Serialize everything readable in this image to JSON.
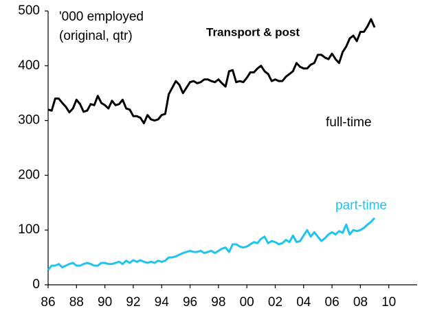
{
  "chart_data": {
    "type": "line",
    "annotations": [
      "'000 employed",
      "(original, qtr)"
    ],
    "title": "Transport & post",
    "x": [
      1986,
      1986.25,
      1986.5,
      1986.75,
      1987,
      1987.25,
      1987.5,
      1987.75,
      1988,
      1988.25,
      1988.5,
      1988.75,
      1989,
      1989.25,
      1989.5,
      1989.75,
      1990,
      1990.25,
      1990.5,
      1990.75,
      1991,
      1991.25,
      1991.5,
      1991.75,
      1992,
      1992.25,
      1992.5,
      1992.75,
      1993,
      1993.25,
      1993.5,
      1993.75,
      1994,
      1994.25,
      1994.5,
      1994.75,
      1995,
      1995.25,
      1995.5,
      1995.75,
      1996,
      1996.25,
      1996.5,
      1996.75,
      1997,
      1997.25,
      1997.5,
      1997.75,
      1998,
      1998.25,
      1998.5,
      1998.75,
      1999,
      1999.25,
      1999.5,
      1999.75,
      2000,
      2000.25,
      2000.5,
      2000.75,
      2001,
      2001.25,
      2001.5,
      2001.75,
      2002,
      2002.25,
      2002.5,
      2002.75,
      2003,
      2003.25,
      2003.5,
      2003.75,
      2004,
      2004.25,
      2004.5,
      2004.75,
      2005,
      2005.25,
      2005.5,
      2005.75,
      2006,
      2006.25,
      2006.5,
      2006.75,
      2007,
      2007.25,
      2007.5,
      2007.75,
      2008,
      2008.25,
      2008.5,
      2008.75,
      2009
    ],
    "series": [
      {
        "name": "full-time",
        "color": "#000000",
        "values": [
          320,
          318,
          340,
          340,
          332,
          325,
          315,
          322,
          338,
          330,
          316,
          318,
          330,
          328,
          345,
          332,
          328,
          322,
          336,
          328,
          330,
          338,
          322,
          320,
          308,
          308,
          305,
          295,
          310,
          302,
          300,
          302,
          310,
          312,
          348,
          360,
          372,
          365,
          350,
          360,
          370,
          372,
          368,
          370,
          375,
          375,
          372,
          370,
          375,
          368,
          362,
          390,
          392,
          370,
          372,
          370,
          378,
          388,
          388,
          395,
          400,
          390,
          385,
          372,
          375,
          372,
          372,
          380,
          385,
          390,
          405,
          398,
          395,
          395,
          402,
          405,
          420,
          420,
          415,
          412,
          422,
          412,
          405,
          425,
          435,
          450,
          455,
          445,
          462,
          462,
          472,
          485,
          470
        ]
      },
      {
        "name": "part-time",
        "color": "#1ec4ee",
        "values": [
          27,
          35,
          35,
          38,
          32,
          35,
          38,
          40,
          35,
          35,
          38,
          40,
          38,
          35,
          35,
          40,
          40,
          38,
          38,
          40,
          42,
          38,
          44,
          40,
          45,
          42,
          45,
          42,
          40,
          42,
          40,
          44,
          42,
          44,
          50,
          50,
          52,
          55,
          58,
          60,
          62,
          60,
          60,
          62,
          58,
          60,
          62,
          58,
          62,
          66,
          68,
          60,
          74,
          74,
          70,
          68,
          70,
          74,
          78,
          76,
          84,
          88,
          76,
          80,
          78,
          74,
          76,
          82,
          78,
          90,
          78,
          80,
          90,
          100,
          88,
          96,
          88,
          80,
          85,
          92,
          96,
          92,
          98,
          95,
          110,
          92,
          100,
          98,
          100,
          104,
          110,
          115,
          122
        ]
      }
    ],
    "xlim": [
      1986,
      2012
    ],
    "xticks": [
      {
        "value": 1986,
        "label": "86"
      },
      {
        "value": 1988,
        "label": "88"
      },
      {
        "value": 1990,
        "label": "90"
      },
      {
        "value": 1992,
        "label": "92"
      },
      {
        "value": 1994,
        "label": "94"
      },
      {
        "value": 1996,
        "label": "96"
      },
      {
        "value": 1998,
        "label": "98"
      },
      {
        "value": 2000,
        "label": "00"
      },
      {
        "value": 2002,
        "label": "02"
      },
      {
        "value": 2004,
        "label": "04"
      },
      {
        "value": 2006,
        "label": "06"
      },
      {
        "value": 2008,
        "label": "08"
      },
      {
        "value": 2010,
        "label": "10"
      }
    ],
    "ylim": [
      0,
      500
    ],
    "yticks": [
      0,
      100,
      200,
      300,
      400,
      500
    ],
    "grid": false
  }
}
